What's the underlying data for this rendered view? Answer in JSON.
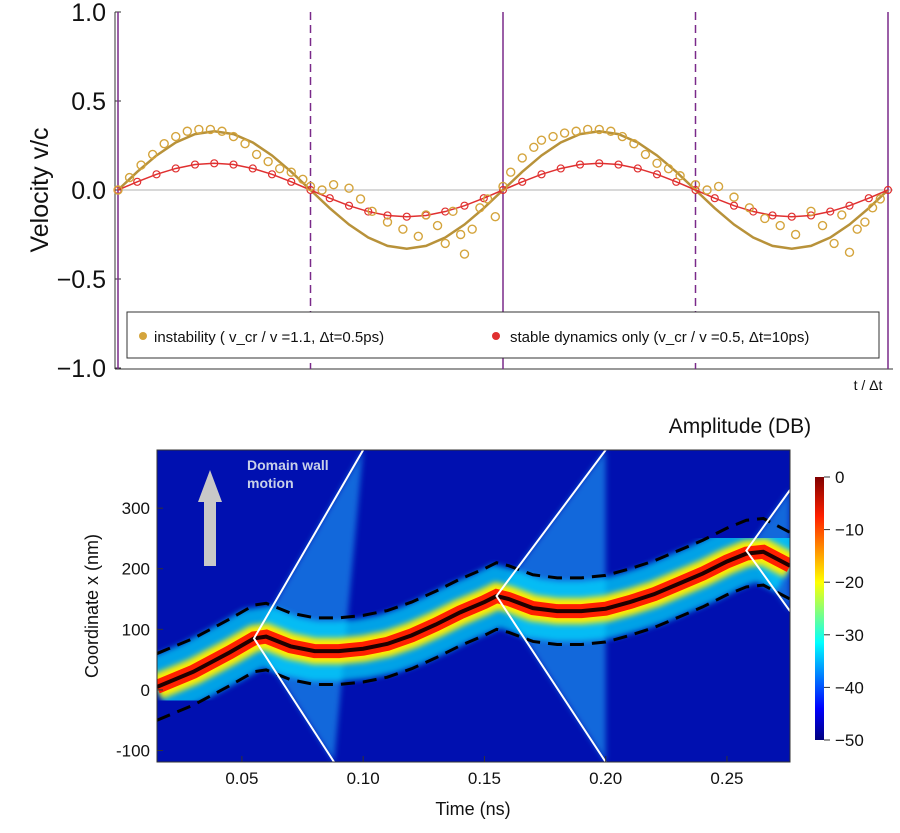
{
  "chart_data": [
    {
      "type": "scatter",
      "ylabel": "Velocity v/c",
      "xlabel": "t / Δt",
      "ylim": [
        -1.0,
        1.0
      ],
      "xlim": [
        0,
        2
      ],
      "yticks": [
        "1.0",
        "0.5",
        "0.0",
        "−0.5",
        "−1.0"
      ],
      "ytick_values": [
        1.0,
        0.5,
        0.0,
        -0.5,
        -1.0
      ],
      "solid_vlines": [
        0,
        1,
        2
      ],
      "dashed_vlines": [
        0.5,
        1.5
      ],
      "legend": {
        "placement": "bottom",
        "items": [
          {
            "label": "instability ( v_cr / v =1.1, Δt=0.5ps)",
            "color": "#d4a43c"
          },
          {
            "label": "stable dynamics only  (v_cr / v =0.5, Δt=10ps)",
            "color": "#e03030"
          }
        ]
      },
      "x": [
        0,
        0.05,
        0.1,
        0.15,
        0.2,
        0.25,
        0.3,
        0.35,
        0.4,
        0.45,
        0.5,
        0.55,
        0.6,
        0.65,
        0.7,
        0.75,
        0.8,
        0.85,
        0.9,
        0.95,
        1,
        1.05,
        1.1,
        1.15,
        1.2,
        1.25,
        1.3,
        1.35,
        1.4,
        1.45,
        1.5,
        1.55,
        1.6,
        1.65,
        1.7,
        1.75,
        1.8,
        1.85,
        1.9,
        1.95,
        2
      ],
      "series": [
        {
          "style": "line",
          "color": "#b8923a",
          "values": [
            0,
            0.102,
            0.194,
            0.267,
            0.314,
            0.33,
            0.314,
            0.267,
            0.194,
            0.102,
            0,
            -0.102,
            -0.194,
            -0.267,
            -0.314,
            -0.33,
            -0.314,
            -0.267,
            -0.194,
            -0.102,
            0,
            0.102,
            0.194,
            0.267,
            0.314,
            0.33,
            0.314,
            0.267,
            0.194,
            0.102,
            0,
            -0.102,
            -0.194,
            -0.267,
            -0.314,
            -0.33,
            -0.314,
            -0.267,
            -0.194,
            -0.102,
            0
          ]
        },
        {
          "style": "line+circles",
          "color": "#e03030",
          "values": [
            0,
            0.046,
            0.088,
            0.121,
            0.143,
            0.15,
            0.143,
            0.121,
            0.088,
            0.046,
            0,
            -0.046,
            -0.088,
            -0.121,
            -0.143,
            -0.15,
            -0.143,
            -0.121,
            -0.088,
            -0.046,
            0,
            0.046,
            0.088,
            0.121,
            0.143,
            0.15,
            0.143,
            0.121,
            0.088,
            0.046,
            0,
            -0.046,
            -0.088,
            -0.121,
            -0.143,
            -0.15,
            -0.143,
            -0.121,
            -0.088,
            -0.046,
            0
          ]
        }
      ],
      "instability_points": {
        "color": "#d4a43c",
        "x": [
          0,
          0.03,
          0.06,
          0.09,
          0.12,
          0.15,
          0.18,
          0.21,
          0.24,
          0.27,
          0.3,
          0.33,
          0.36,
          0.39,
          0.42,
          0.45,
          0.48,
          0.5,
          0.53,
          0.56,
          0.6,
          0.63,
          0.66,
          0.7,
          0.74,
          0.78,
          0.8,
          0.83,
          0.85,
          0.87,
          0.89,
          0.9,
          0.92,
          0.94,
          0.96,
          0.98,
          1.0,
          1.02,
          1.05,
          1.08,
          1.1,
          1.13,
          1.16,
          1.19,
          1.22,
          1.25,
          1.28,
          1.31,
          1.34,
          1.37,
          1.4,
          1.43,
          1.46,
          1.5,
          1.53,
          1.56,
          1.6,
          1.64,
          1.68,
          1.72,
          1.76,
          1.8,
          1.83,
          1.86,
          1.88,
          1.9,
          1.92,
          1.94,
          1.96,
          1.98
        ],
        "y": [
          0,
          0.07,
          0.14,
          0.2,
          0.26,
          0.3,
          0.33,
          0.34,
          0.34,
          0.33,
          0.3,
          0.26,
          0.2,
          0.16,
          0.12,
          0.1,
          0.06,
          0.02,
          0.0,
          0.03,
          0.01,
          -0.05,
          -0.12,
          -0.18,
          -0.22,
          -0.26,
          -0.14,
          -0.2,
          -0.3,
          -0.12,
          -0.25,
          -0.36,
          -0.22,
          -0.1,
          -0.05,
          -0.15,
          0.02,
          0.1,
          0.18,
          0.24,
          0.28,
          0.3,
          0.32,
          0.33,
          0.34,
          0.34,
          0.33,
          0.3,
          0.26,
          0.2,
          0.15,
          0.12,
          0.08,
          0.03,
          0.0,
          0.02,
          -0.04,
          -0.1,
          -0.16,
          -0.2,
          -0.25,
          -0.12,
          -0.2,
          -0.3,
          -0.14,
          -0.35,
          -0.22,
          -0.18,
          -0.1,
          -0.05
        ]
      }
    },
    {
      "type": "heatmap",
      "title": "Amplitude (DB)",
      "xlabel": "Time (ns)",
      "ylabel": "Coordinate x (nm)",
      "xlim": [
        0.015,
        0.276
      ],
      "ylim": [
        -119,
        396
      ],
      "xticks": [
        0.05,
        0.1,
        0.15,
        0.2,
        0.25
      ],
      "xtick_labels": [
        "0.05",
        "0.10",
        "0.15",
        "0.20",
        "0.25"
      ],
      "yticks": [
        -100,
        0,
        100,
        200,
        300
      ],
      "ytick_labels": [
        "-100",
        "0",
        "100",
        "200",
        "300"
      ],
      "colorbar": {
        "range": [
          -50,
          0
        ],
        "ticks": [
          "0",
          "-10",
          "-20",
          "-30",
          "-40",
          "-50"
        ],
        "colormap": "jet"
      },
      "annotation": "Domain wall motion",
      "domain_wall": {
        "t": [
          0.015,
          0.03,
          0.045,
          0.055,
          0.06,
          0.07,
          0.08,
          0.09,
          0.1,
          0.11,
          0.12,
          0.13,
          0.14,
          0.15,
          0.155,
          0.16,
          0.17,
          0.18,
          0.19,
          0.2,
          0.21,
          0.22,
          0.23,
          0.24,
          0.25,
          0.258,
          0.265,
          0.276
        ],
        "x": [
          5,
          30,
          62,
          85,
          88,
          72,
          64,
          64,
          68,
          76,
          90,
          108,
          128,
          145,
          155,
          150,
          135,
          130,
          130,
          134,
          145,
          158,
          175,
          192,
          212,
          225,
          228,
          205
        ]
      },
      "upper_envelope": {
        "t": [
          0.015,
          0.03,
          0.045,
          0.055,
          0.06,
          0.07,
          0.08,
          0.09,
          0.1,
          0.11,
          0.12,
          0.13,
          0.14,
          0.15,
          0.155,
          0.16,
          0.17,
          0.18,
          0.19,
          0.2,
          0.21,
          0.22,
          0.23,
          0.24,
          0.25,
          0.258,
          0.265,
          0.276
        ],
        "x": [
          60,
          85,
          117,
          140,
          143,
          127,
          119,
          119,
          123,
          131,
          145,
          163,
          183,
          200,
          210,
          205,
          190,
          185,
          185,
          189,
          200,
          213,
          230,
          247,
          267,
          280,
          283,
          260
        ]
      },
      "lower_envelope": {
        "t": [
          0.015,
          0.03,
          0.045,
          0.055,
          0.06,
          0.07,
          0.08,
          0.09,
          0.1,
          0.11,
          0.12,
          0.13,
          0.14,
          0.15,
          0.155,
          0.16,
          0.17,
          0.18,
          0.19,
          0.2,
          0.21,
          0.22,
          0.23,
          0.24,
          0.25,
          0.258,
          0.265,
          0.276
        ],
        "x": [
          -50,
          -25,
          7,
          30,
          33,
          17,
          9,
          9,
          13,
          21,
          35,
          53,
          73,
          90,
          100,
          95,
          80,
          75,
          75,
          79,
          90,
          103,
          120,
          137,
          157,
          170,
          173,
          150
        ]
      },
      "reflection_lines": [
        {
          "t": [
            0.1,
            0.055,
            0.088
          ],
          "x": [
            396,
            85,
            -119
          ]
        },
        {
          "t": [
            0.2,
            0.155,
            0.2
          ],
          "x": [
            396,
            155,
            -119
          ]
        },
        {
          "t": [
            0.276,
            0.258,
            0.276
          ],
          "x": [
            330,
            230,
            130
          ]
        }
      ]
    }
  ]
}
